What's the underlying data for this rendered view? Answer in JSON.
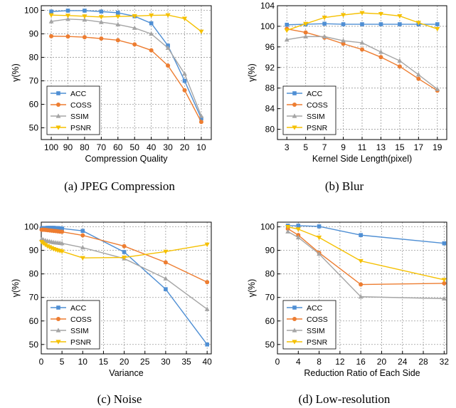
{
  "colors": {
    "ACC": "#4f8fd4",
    "COSS": "#ed7d31",
    "SSIM": "#a5a5a5",
    "PSNR": "#f5c000"
  },
  "chart_data": [
    {
      "type": "line",
      "caption": "(a)  JPEG Compression",
      "xlabel": "Compression Quality",
      "ylabel": "γ(%)",
      "x_scale": "categorical",
      "categories": [
        "100",
        "90",
        "80",
        "70",
        "60",
        "50",
        "40",
        "30",
        "20",
        "10"
      ],
      "ylim": [
        45,
        102
      ],
      "yticks": [
        50,
        60,
        70,
        80,
        90,
        100
      ],
      "grid": true,
      "legend": "bottom-left",
      "series": [
        {
          "name": "ACC",
          "values": [
            99.5,
            99.9,
            99.9,
            99.5,
            99.0,
            97.5,
            94.5,
            85.0,
            70.0,
            54.0
          ]
        },
        {
          "name": "COSS",
          "values": [
            89.0,
            88.9,
            88.6,
            88.0,
            87.3,
            85.5,
            83.0,
            76.5,
            66.0,
            52.5
          ]
        },
        {
          "name": "SSIM",
          "values": [
            95.3,
            96.3,
            96.0,
            95.0,
            94.0,
            92.5,
            90.0,
            84.0,
            73.0,
            55.0
          ]
        },
        {
          "name": "PSNR",
          "values": [
            98.0,
            97.8,
            97.5,
            97.2,
            97.4,
            97.6,
            97.9,
            98.0,
            96.5,
            91.0
          ]
        }
      ]
    },
    {
      "type": "line",
      "caption": "(b)  Blur",
      "xlabel": "Kernel Side Length(pixel)",
      "ylabel": "γ(%)",
      "x_scale": "linear",
      "xlim": [
        2,
        20
      ],
      "xticks": [
        3,
        5,
        7,
        9,
        11,
        13,
        15,
        17,
        19
      ],
      "ylim": [
        78,
        104
      ],
      "yticks": [
        80,
        84,
        88,
        92,
        96,
        100,
        104
      ],
      "grid": true,
      "legend": "bottom-left",
      "series": [
        {
          "name": "ACC",
          "x": [
            3,
            5,
            7,
            9,
            11,
            13,
            15,
            17,
            19
          ],
          "values": [
            100.3,
            100.4,
            100.5,
            100.4,
            100.4,
            100.4,
            100.4,
            100.4,
            100.4
          ]
        },
        {
          "name": "COSS",
          "x": [
            3,
            5,
            7,
            9,
            11,
            13,
            15,
            17,
            19
          ],
          "values": [
            99.5,
            98.8,
            97.8,
            96.6,
            95.5,
            94.0,
            92.2,
            89.8,
            87.5
          ]
        },
        {
          "name": "SSIM",
          "x": [
            3,
            5,
            7,
            9,
            11,
            13,
            15,
            17,
            19
          ],
          "values": [
            97.4,
            98.0,
            98.0,
            97.2,
            96.8,
            95.0,
            93.3,
            90.6,
            87.8
          ]
        },
        {
          "name": "PSNR",
          "x": [
            3,
            5,
            7,
            9,
            11,
            13,
            15,
            17,
            19
          ],
          "values": [
            99.2,
            100.5,
            101.7,
            102.2,
            102.6,
            102.4,
            102.0,
            100.7,
            99.5
          ]
        }
      ]
    },
    {
      "type": "line",
      "caption": "(c)  Noise",
      "xlabel": "Variance",
      "ylabel": "γ(%)",
      "x_scale": "linear",
      "xlim": [
        0,
        41
      ],
      "xticks": [
        0,
        5,
        10,
        15,
        20,
        25,
        30,
        35,
        40
      ],
      "ylim": [
        46,
        102
      ],
      "yticks": [
        50,
        60,
        70,
        80,
        90,
        100
      ],
      "grid": true,
      "legend": "bottom-left",
      "series": [
        {
          "name": "ACC",
          "x": [
            0.1,
            0.5,
            1,
            1.5,
            2,
            2.5,
            3,
            3.5,
            4,
            4.5,
            5,
            10,
            20,
            30,
            40
          ],
          "values": [
            99.3,
            99.5,
            99.5,
            99.6,
            99.6,
            99.6,
            99.6,
            99.5,
            99.5,
            99.4,
            99.3,
            98.3,
            89.3,
            73.5,
            50.0
          ]
        },
        {
          "name": "COSS",
          "x": [
            0.1,
            0.5,
            1,
            1.5,
            2,
            2.5,
            3,
            3.5,
            4,
            4.5,
            5,
            10,
            20,
            30,
            40
          ],
          "values": [
            98.8,
            98.8,
            98.7,
            98.6,
            98.5,
            98.4,
            98.3,
            98.2,
            98.1,
            98.0,
            97.9,
            96.4,
            91.8,
            84.9,
            76.5
          ]
        },
        {
          "name": "SSIM",
          "x": [
            0.1,
            0.5,
            1,
            1.5,
            2,
            2.5,
            3,
            3.5,
            4,
            4.5,
            5,
            10,
            20,
            30,
            40
          ],
          "values": [
            94.8,
            94.5,
            94.2,
            94.0,
            93.8,
            93.6,
            93.4,
            93.3,
            93.2,
            93.1,
            93.0,
            91.2,
            86.5,
            78.0,
            65.0
          ]
        },
        {
          "name": "PSNR",
          "x": [
            0.1,
            0.5,
            1,
            1.5,
            2,
            2.5,
            3,
            3.5,
            4,
            4.5,
            5,
            10,
            20,
            30,
            40
          ],
          "values": [
            93.6,
            93.0,
            92.4,
            91.8,
            91.4,
            91.0,
            90.6,
            90.3,
            90.0,
            89.8,
            89.6,
            86.8,
            87.0,
            89.5,
            92.5
          ]
        }
      ]
    },
    {
      "type": "line",
      "caption": "(d)  Low-resolution",
      "xlabel": "Reduction Ratio of Each Side",
      "ylabel": "γ(%)",
      "x_scale": "linear",
      "xlim": [
        0,
        32.5
      ],
      "xticks": [
        0,
        4,
        8,
        12,
        16,
        20,
        24,
        28,
        32
      ],
      "ylim": [
        46,
        102
      ],
      "yticks": [
        50,
        60,
        70,
        80,
        90,
        100
      ],
      "grid": true,
      "legend": "bottom-left",
      "series": [
        {
          "name": "ACC",
          "x": [
            2,
            4,
            8,
            16,
            32
          ],
          "values": [
            100.5,
            100.5,
            100.2,
            96.5,
            93.0
          ]
        },
        {
          "name": "COSS",
          "x": [
            2,
            4,
            8,
            16,
            32
          ],
          "values": [
            99.2,
            96.5,
            89.0,
            75.5,
            76.0
          ]
        },
        {
          "name": "SSIM",
          "x": [
            2,
            4,
            8,
            16,
            32
          ],
          "values": [
            98.0,
            95.5,
            88.5,
            70.3,
            69.5
          ]
        },
        {
          "name": "PSNR",
          "x": [
            2,
            4,
            8,
            16,
            32
          ],
          "values": [
            100.0,
            99.0,
            95.5,
            85.5,
            77.5
          ]
        }
      ]
    }
  ]
}
